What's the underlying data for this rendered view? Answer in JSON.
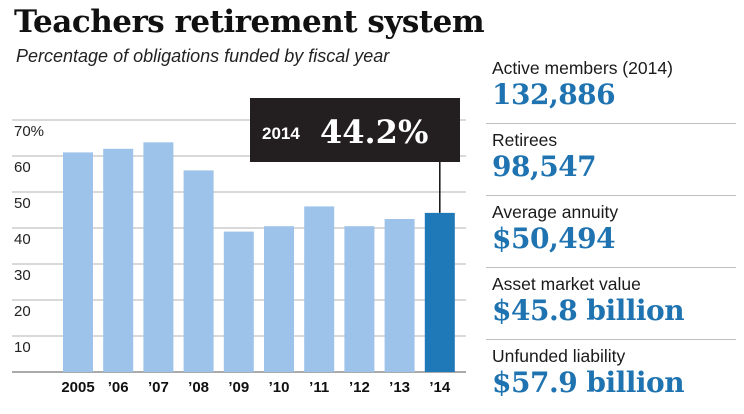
{
  "title": "Teachers retirement system",
  "subtitle": "Percentage of obligations funded by fiscal year",
  "chart_data": {
    "type": "bar",
    "title": "Teachers retirement system",
    "subtitle": "Percentage of obligations funded by fiscal year",
    "categories": [
      "2005",
      "’06",
      "’07",
      "’08",
      "’09",
      "’10",
      "’11",
      "’12",
      "’13",
      "’14"
    ],
    "values": [
      61,
      62,
      63.8,
      56,
      39,
      40.5,
      46,
      40.5,
      42.5,
      44.2
    ],
    "ylim": [
      0,
      70
    ],
    "yticks": [
      10,
      20,
      30,
      40,
      50,
      60,
      70
    ],
    "ytick_labels": [
      "10",
      "20",
      "30",
      "40",
      "50",
      "60",
      "70%"
    ],
    "grid": true,
    "highlight_index": 9,
    "callout": {
      "year": "2014",
      "value": "44.2%"
    },
    "colors": {
      "bar": "#9dc3ea",
      "highlight": "#1f78b8",
      "callout_bg": "#231f20",
      "grid": "#b3b3b3"
    }
  },
  "stats": [
    {
      "label": "Active members (2014)",
      "value": "132,886"
    },
    {
      "label": "Retirees",
      "value": "98,547"
    },
    {
      "label": "Average annuity",
      "value": "$50,494"
    },
    {
      "label": "Asset market value",
      "value": "$45.8 billion"
    },
    {
      "label": "Unfunded liability",
      "value": "$57.9 billion"
    }
  ]
}
